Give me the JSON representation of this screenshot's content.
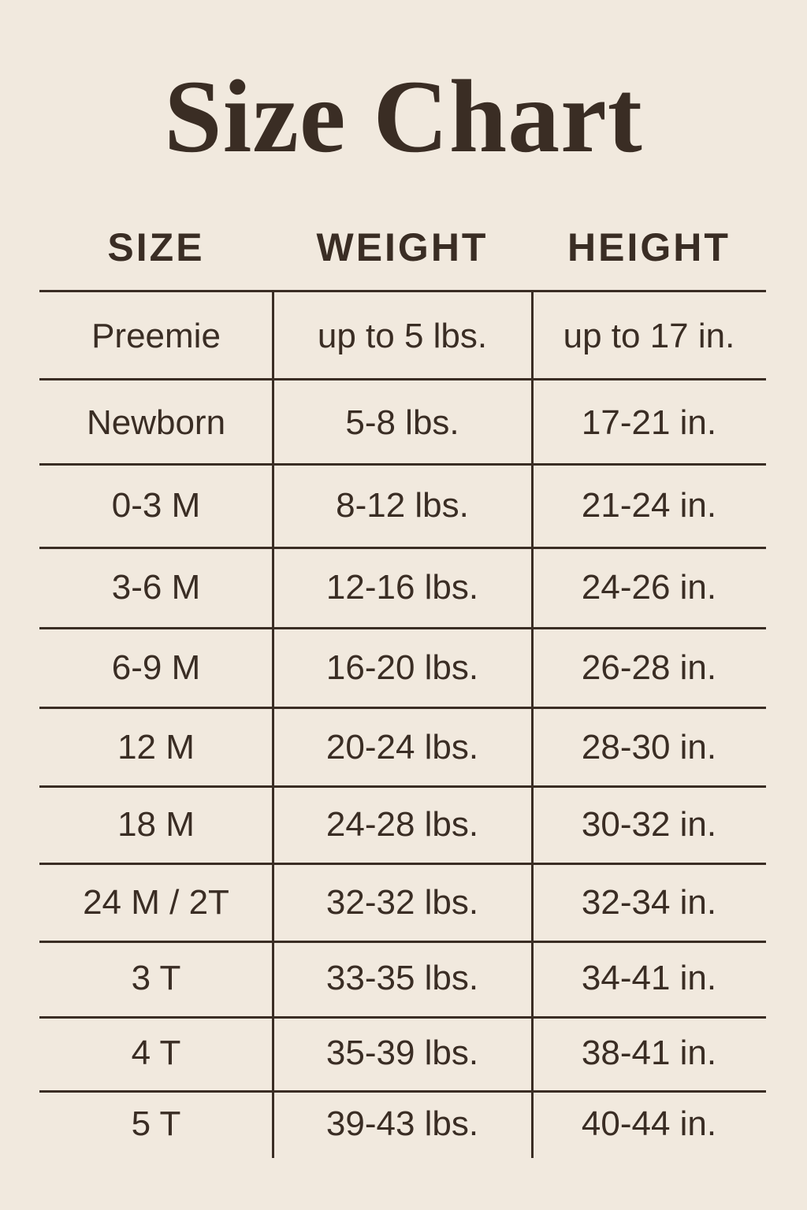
{
  "title": "Size Chart",
  "headers": [
    "SIZE",
    "WEIGHT",
    "HEIGHT"
  ],
  "rows": [
    {
      "size": "Preemie",
      "weight": "up to 5 lbs.",
      "height": "up to 17 in."
    },
    {
      "size": "Newborn",
      "weight": "5-8 lbs.",
      "height": "17-21 in."
    },
    {
      "size": "0-3 M",
      "weight": "8-12 lbs.",
      "height": "21-24 in."
    },
    {
      "size": "3-6 M",
      "weight": "12-16 lbs.",
      "height": "24-26 in."
    },
    {
      "size": "6-9 M",
      "weight": "16-20 lbs.",
      "height": "26-28 in."
    },
    {
      "size": "12 M",
      "weight": "20-24 lbs.",
      "height": "28-30 in."
    },
    {
      "size": "18 M",
      "weight": "24-28 lbs.",
      "height": "30-32 in."
    },
    {
      "size": "24 M / 2T",
      "weight": "32-32 lbs.",
      "height": "32-34 in."
    },
    {
      "size": "3 T",
      "weight": "33-35 lbs.",
      "height": "34-41 in."
    },
    {
      "size": "4 T",
      "weight": "35-39 lbs.",
      "height": "38-41 in."
    },
    {
      "size": "5 T",
      "weight": "39-43 lbs.",
      "height": "40-44 in."
    }
  ],
  "colors": {
    "background": "#f1e9de",
    "text": "#3a2d24"
  }
}
